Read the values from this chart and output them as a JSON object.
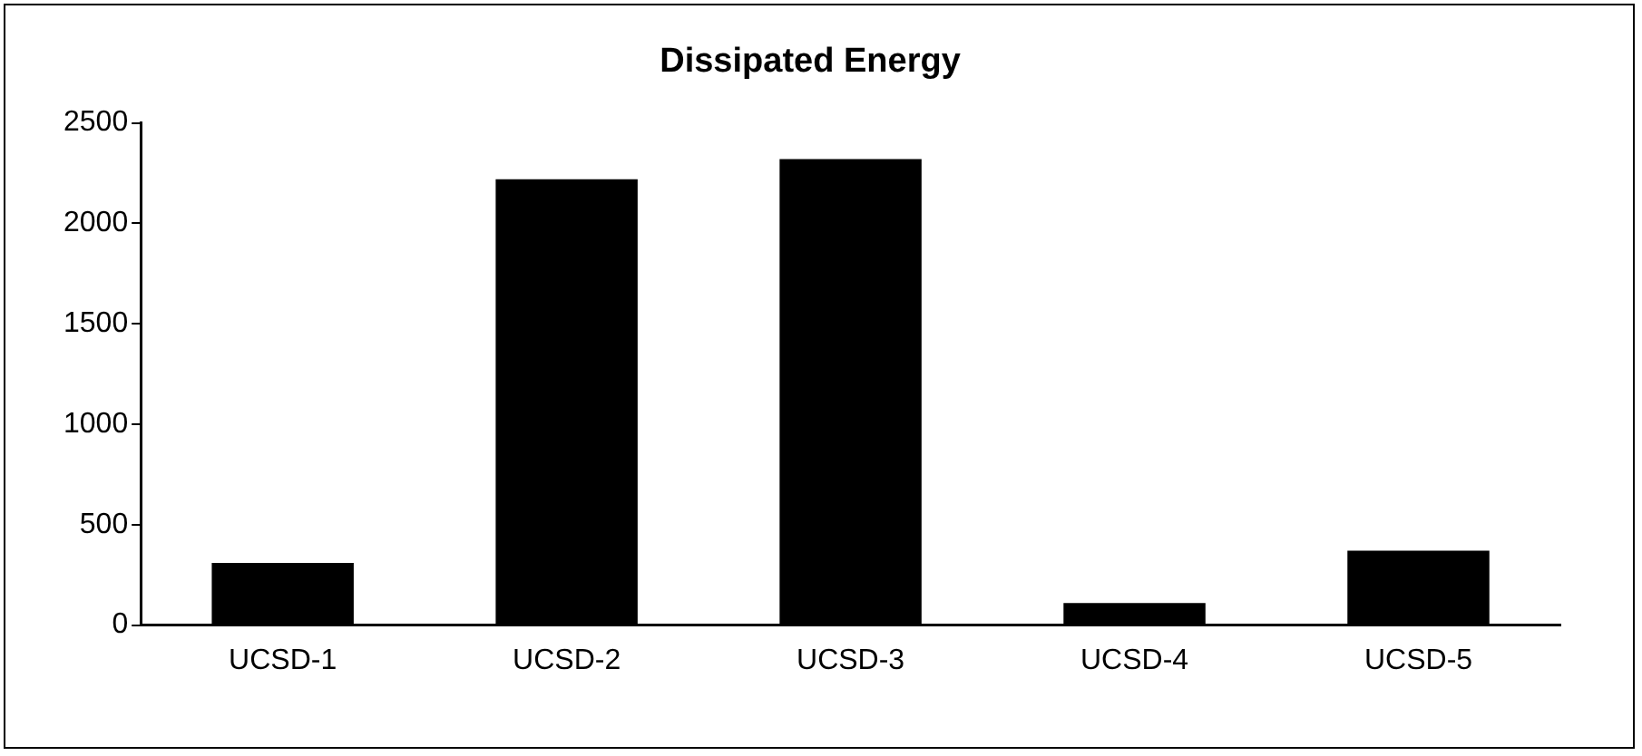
{
  "chart_data": {
    "type": "bar",
    "title": "Dissipated Energy",
    "categories": [
      "UCSD-1",
      "UCSD-2",
      "UCSD-3",
      "UCSD-4",
      "UCSD-5"
    ],
    "values": [
      310,
      2220,
      2320,
      110,
      370
    ],
    "color": "#000000",
    "ylim": [
      0,
      2500
    ],
    "yticks": [
      0,
      500,
      1000,
      1500,
      2000,
      2500
    ],
    "grid": false,
    "legend": false
  }
}
